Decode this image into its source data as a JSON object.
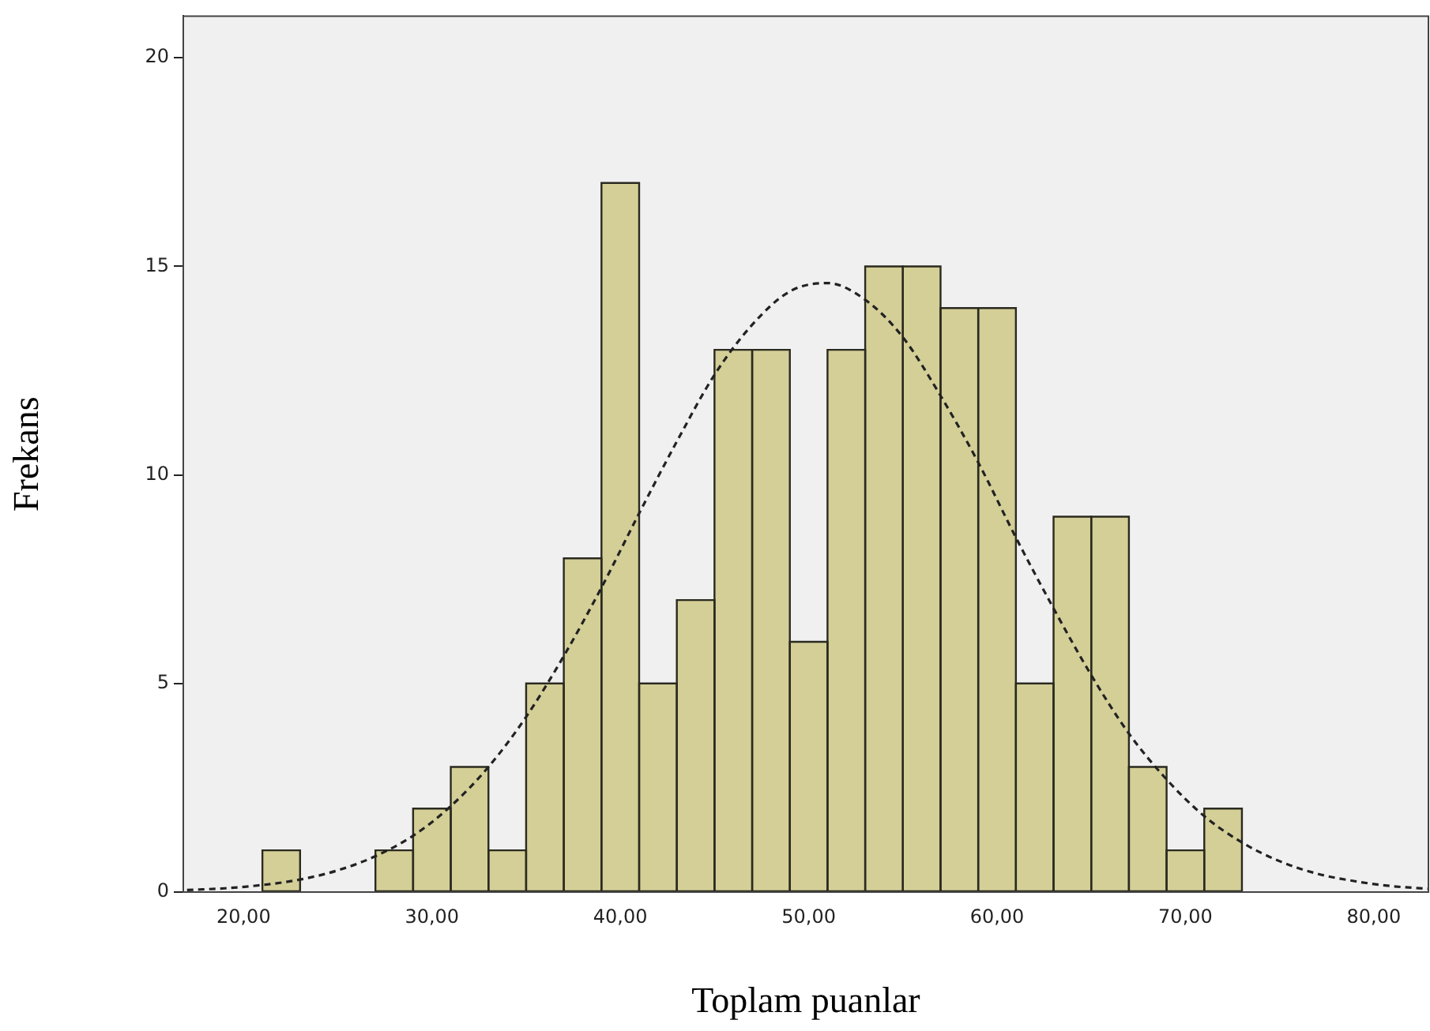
{
  "chart_data": {
    "type": "histogram",
    "xlabel": "Toplam puanlar",
    "ylabel": "Frekans",
    "bins": [
      21,
      23,
      25,
      27,
      29,
      31,
      33,
      35,
      37,
      39,
      41,
      43,
      45,
      47,
      49,
      51,
      53,
      55,
      57,
      59,
      61,
      63,
      65,
      67,
      69,
      71,
      73
    ],
    "values": [
      1,
      0,
      0,
      1,
      2,
      3,
      1,
      5,
      8,
      17,
      5,
      7,
      13,
      13,
      6,
      13,
      15,
      15,
      14,
      14,
      5,
      9,
      9,
      3,
      1,
      2
    ],
    "color": "#d4cf97",
    "series": [
      {
        "type": "line",
        "color": "#222222",
        "line_style": "dashed",
        "marker": "none",
        "x": [
          17,
          19,
          21,
          23,
          25,
          27,
          29,
          31,
          33,
          35,
          37,
          39,
          41,
          43,
          45,
          47,
          49,
          51,
          53,
          55,
          57,
          59,
          61,
          63,
          65,
          67,
          69,
          71,
          73,
          75,
          77,
          79,
          81,
          82.9
        ],
        "values": [
          0.05,
          0.09,
          0.17,
          0.3,
          0.52,
          0.86,
          1.35,
          2.06,
          3.0,
          4.2,
          5.66,
          7.3,
          9.08,
          10.8,
          12.4,
          13.6,
          14.4,
          14.6,
          14.2,
          13.3,
          11.9,
          10.3,
          8.5,
          6.8,
          5.2,
          3.8,
          2.7,
          1.82,
          1.19,
          0.74,
          0.44,
          0.26,
          0.14,
          0.08
        ]
      }
    ],
    "xlim": [
      16.8,
      82.9
    ],
    "xticks": [
      {
        "value": 20,
        "label": "20,00"
      },
      {
        "value": 30,
        "label": "30,00"
      },
      {
        "value": 40,
        "label": "40,00"
      },
      {
        "value": 50,
        "label": "50,00"
      },
      {
        "value": 60,
        "label": "60,00"
      },
      {
        "value": 70,
        "label": "70,00"
      },
      {
        "value": 80,
        "label": "80,00"
      }
    ],
    "ylim": [
      0,
      21
    ],
    "yticks": [
      0,
      5,
      10,
      15,
      20
    ],
    "grid": false,
    "legend": false
  }
}
